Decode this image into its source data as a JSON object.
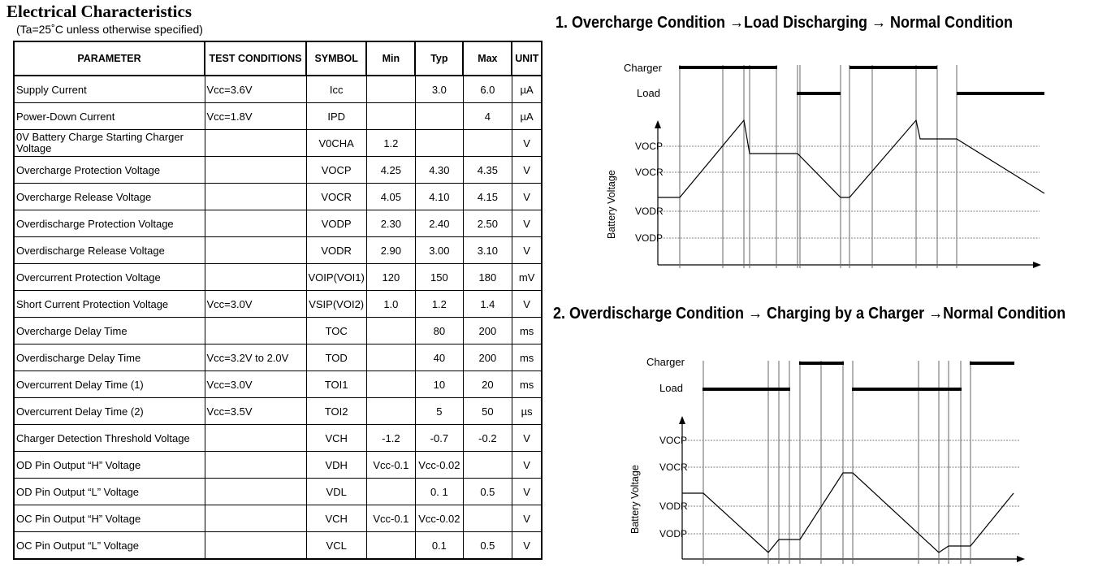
{
  "title": "Electrical Characteristics",
  "subtitle": "(Ta=25˚C unless otherwise specified)",
  "table": {
    "headers": [
      "PARAMETER",
      "TEST CONDITIONS",
      "SYMBOL",
      "Min",
      "Typ",
      "Max",
      "UNIT"
    ],
    "rows": [
      {
        "param": "Supply Current",
        "cond": "Vcc=3.6V",
        "symbol": "Icc",
        "min": "",
        "typ": "3.0",
        "max": "6.0",
        "unit": "µA"
      },
      {
        "param": "Power-Down Current",
        "cond": "Vcc=1.8V",
        "symbol": "IPD",
        "min": "",
        "typ": "",
        "max": "4",
        "unit": "µA"
      },
      {
        "param": "0V Battery Charge Starting Charger Voltage",
        "cond": "",
        "symbol": "V0CHA",
        "min": "1.2",
        "typ": "",
        "max": "",
        "unit": "V"
      },
      {
        "param": "Overcharge Protection Voltage",
        "cond": "",
        "symbol": "VOCP",
        "min": "4.25",
        "typ": "4.30",
        "max": "4.35",
        "unit": "V"
      },
      {
        "param": "Overcharge Release Voltage",
        "cond": "",
        "symbol": "VOCR",
        "min": "4.05",
        "typ": "4.10",
        "max": "4.15",
        "unit": "V"
      },
      {
        "param": "Overdischarge Protection Voltage",
        "cond": "",
        "symbol": "VODP",
        "min": "2.30",
        "typ": "2.40",
        "max": "2.50",
        "unit": "V"
      },
      {
        "param": "Overdischarge Release Voltage",
        "cond": "",
        "symbol": "VODR",
        "min": "2.90",
        "typ": "3.00",
        "max": "3.10",
        "unit": "V"
      },
      {
        "param": "Overcurrent Protection Voltage",
        "cond": "",
        "symbol": "VOIP(VOI1)",
        "min": "120",
        "typ": "150",
        "max": "180",
        "unit": "mV"
      },
      {
        "param": "Short Current Protection Voltage",
        "cond": "Vcc=3.0V",
        "symbol": "VSIP(VOI2)",
        "min": "1.0",
        "typ": "1.2",
        "max": "1.4",
        "unit": "V"
      },
      {
        "param": "Overcharge Delay Time",
        "cond": "",
        "symbol": "TOC",
        "min": "",
        "typ": "80",
        "max": "200",
        "unit": "ms"
      },
      {
        "param": "Overdischarge Delay Time",
        "cond": "Vcc=3.2V to 2.0V",
        "symbol": "TOD",
        "min": "",
        "typ": "40",
        "max": "200",
        "unit": "ms"
      },
      {
        "param": "Overcurrent Delay Time (1)",
        "cond": "Vcc=3.0V",
        "symbol": "TOI1",
        "min": "",
        "typ": "10",
        "max": "20",
        "unit": "ms"
      },
      {
        "param": "Overcurrent Delay Time (2)",
        "cond": "Vcc=3.5V",
        "symbol": "TOI2",
        "min": "",
        "typ": "5",
        "max": "50",
        "unit": "µs"
      },
      {
        "param": "Charger Detection Threshold Voltage",
        "cond": "",
        "symbol": "VCH",
        "min": "-1.2",
        "typ": "-0.7",
        "max": "-0.2",
        "unit": "V"
      },
      {
        "param": "OD Pin Output “H” Voltage",
        "cond": "",
        "symbol": "VDH",
        "min": "Vcc-0.1",
        "typ": "Vcc-0.02",
        "max": "",
        "unit": "V"
      },
      {
        "param": "OD Pin Output “L” Voltage",
        "cond": "",
        "symbol": "VDL",
        "min": "",
        "typ": "0. 1",
        "max": "0.5",
        "unit": "V"
      },
      {
        "param": "OC Pin Output “H” Voltage",
        "cond": "",
        "symbol": "VCH",
        "min": "Vcc-0.1",
        "typ": "Vcc-0.02",
        "max": "",
        "unit": "V"
      },
      {
        "param": "OC Pin Output “L” Voltage",
        "cond": "",
        "symbol": "VCL",
        "min": "",
        "typ": "0.1",
        "max": "0.5",
        "unit": "V"
      }
    ]
  },
  "diagram1": {
    "heading": "1.   Overcharge Condition →Load Discharging → Normal Condition",
    "charger_label": "Charger",
    "load_label": "Load",
    "yaxis_label": "Battery Voltage",
    "level_labels": [
      "VOCP",
      "VOCR",
      "VODR",
      "VODP"
    ]
  },
  "diagram2": {
    "heading": "2.   Overdischarge Condition → Charging by a Charger →Normal Condition",
    "charger_label": "Charger",
    "load_label": "Load",
    "yaxis_label": "Battery Voltage",
    "level_labels": [
      "VOCP",
      "VOCR",
      "VODR",
      "VODP"
    ]
  }
}
